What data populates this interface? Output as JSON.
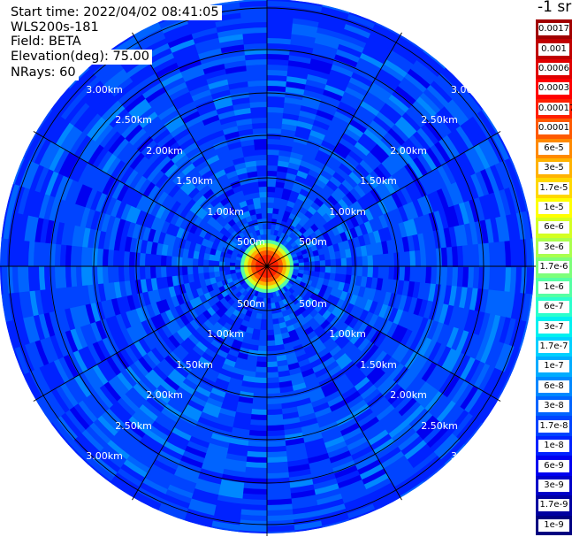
{
  "info": {
    "start_time": "Start time: 2022/04/02 08:41:05",
    "station": "WLS200s-181",
    "field": "Field: BETA",
    "elevation": "Elevation(deg): 75.00",
    "nrays": "NRays: 60"
  },
  "colorbar": {
    "unit_title": "-1 sr",
    "levels": [
      {
        "label": "0.0017",
        "color": "#a10000"
      },
      {
        "label": "0.001",
        "color": "#c00000"
      },
      {
        "label": "0.0006",
        "color": "#e00000"
      },
      {
        "label": "0.0003",
        "color": "#ff0000"
      },
      {
        "label": "0.00017",
        "color": "#ff2000"
      },
      {
        "label": "0.0001",
        "color": "#ff5a00"
      },
      {
        "label": "6e-5",
        "color": "#ff8a00"
      },
      {
        "label": "3e-5",
        "color": "#ffb300"
      },
      {
        "label": "1.7e-5",
        "color": "#ffd800"
      },
      {
        "label": "1e-5",
        "color": "#ffff00"
      },
      {
        "label": "6e-6",
        "color": "#d4ff22"
      },
      {
        "label": "3e-6",
        "color": "#aaff4d"
      },
      {
        "label": "1.7e-6",
        "color": "#7dff7a"
      },
      {
        "label": "1e-6",
        "color": "#55ffa3"
      },
      {
        "label": "6e-7",
        "color": "#2bffcd"
      },
      {
        "label": "3e-7",
        "color": "#00f0f0"
      },
      {
        "label": "1.7e-7",
        "color": "#00d0ff"
      },
      {
        "label": "1e-7",
        "color": "#00acff"
      },
      {
        "label": "6e-8",
        "color": "#0088ff"
      },
      {
        "label": "3e-8",
        "color": "#0064ff"
      },
      {
        "label": "1.7e-8",
        "color": "#0044ff"
      },
      {
        "label": "1e-8",
        "color": "#0022ff"
      },
      {
        "label": "6e-9",
        "color": "#0000f0"
      },
      {
        "label": "3e-9",
        "color": "#0000c8"
      },
      {
        "label": "1.7e-9",
        "color": "#0000a0"
      },
      {
        "label": "1e-9",
        "color": "#000080"
      }
    ]
  },
  "rings": {
    "r500": "500m",
    "r1000": "1.00km",
    "r1500": "1.50km",
    "r2000": "2.00km",
    "r2500": "2.50km",
    "r3000": "3.00km",
    "r3000_partial": "3.00"
  },
  "colors": {
    "background_field": "#1f3cff",
    "grid": "#000000",
    "ring_label": "#ffffff"
  }
}
